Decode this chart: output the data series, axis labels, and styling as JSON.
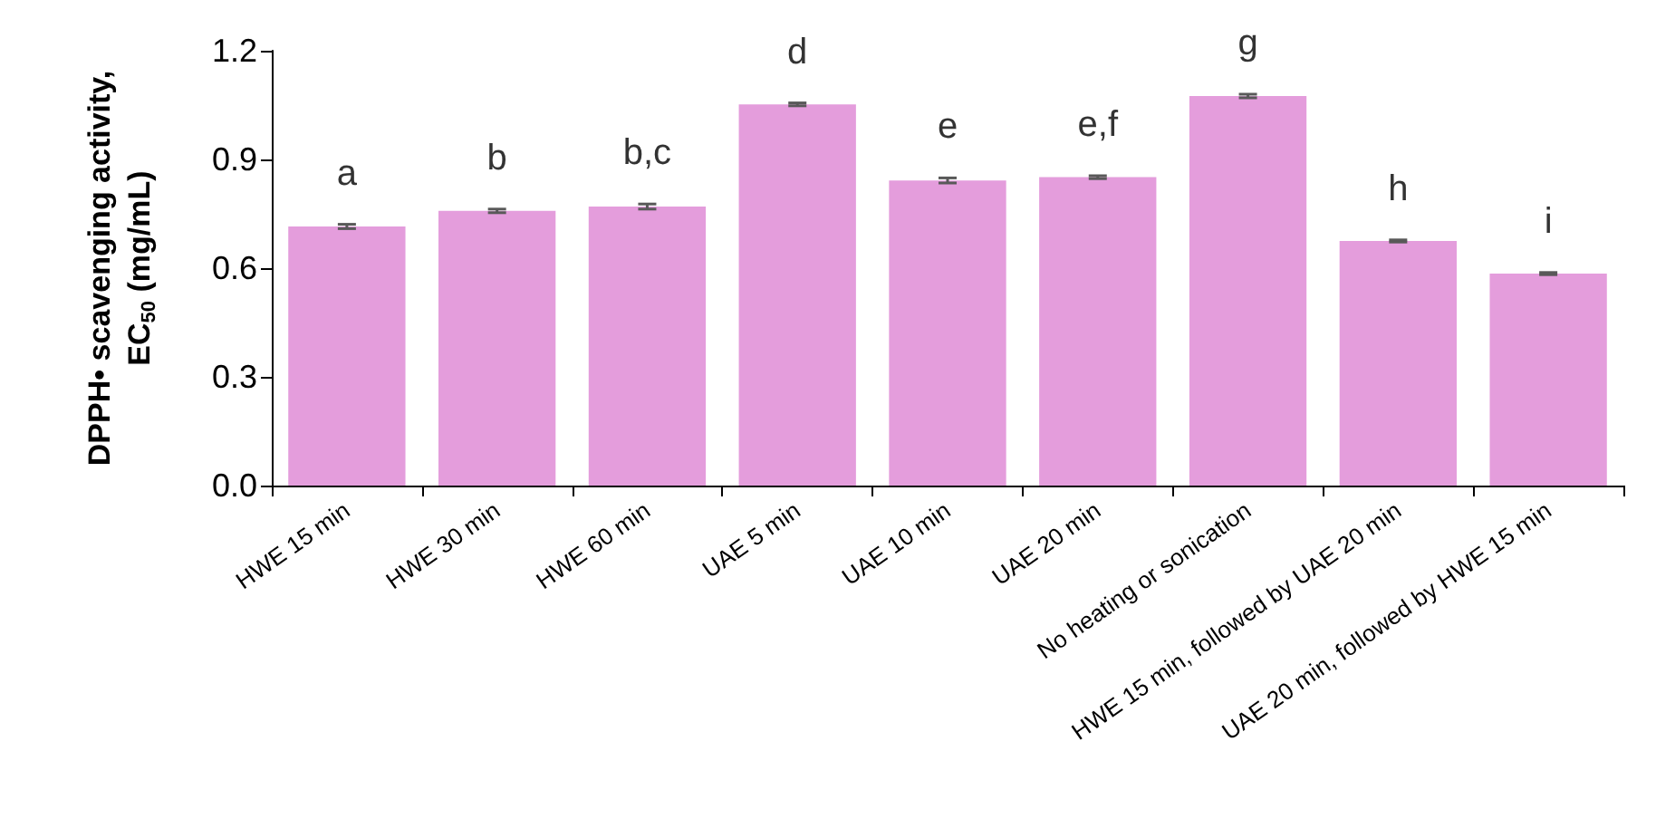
{
  "chart_data": {
    "type": "bar",
    "ylabel": "DPPH• scavenging activity, EC$_{50}$ (mg/mL)",
    "categories": [
      "HWE 15 min",
      "HWE 30 min",
      "HWE 60 min",
      "UAE 5 min",
      "UAE 10 min",
      "UAE 20 min",
      "No heating or sonication",
      "HWE 15 min, followed by UAE 20 min",
      "UAE 20 min, followed by HWE 15 min"
    ],
    "values": [
      0.715,
      0.758,
      0.77,
      1.052,
      0.842,
      0.851,
      1.075,
      0.675,
      0.585
    ],
    "errors": [
      0.006,
      0.005,
      0.007,
      0.004,
      0.007,
      0.004,
      0.005,
      0.003,
      0.003
    ],
    "color": "#e49ddc",
    "ylim": [
      0,
      1.2
    ],
    "yticks": [
      {
        "value": 0,
        "label": "0.0"
      },
      {
        "value": 0.3,
        "label": "0.3"
      },
      {
        "value": 0.6,
        "label": "0.6"
      },
      {
        "value": 0.9,
        "label": "0.9"
      },
      {
        "value": 1.2,
        "label": "1.2"
      }
    ],
    "annotations": [
      {
        "text": "a",
        "x": "HWE 15 min",
        "y": 0.721
      },
      {
        "text": "b",
        "x": "HWE 30 min",
        "y": 0.763
      },
      {
        "text": "b,c",
        "x": "HWE 60 min",
        "y": 0.777
      },
      {
        "text": "d",
        "x": "UAE 5 min",
        "y": 1.056
      },
      {
        "text": "e",
        "x": "UAE 10 min",
        "y": 0.849
      },
      {
        "text": "e,f",
        "x": "UAE 20 min",
        "y": 0.855
      },
      {
        "text": "g",
        "x": "No heating or sonication",
        "y": 1.08
      },
      {
        "text": "h",
        "x": "HWE 15 min, followed by UAE 20 min",
        "y": 0.678
      },
      {
        "text": "i",
        "x": "UAE 20 min, followed by HWE 15 min",
        "y": 0.588
      }
    ]
  }
}
